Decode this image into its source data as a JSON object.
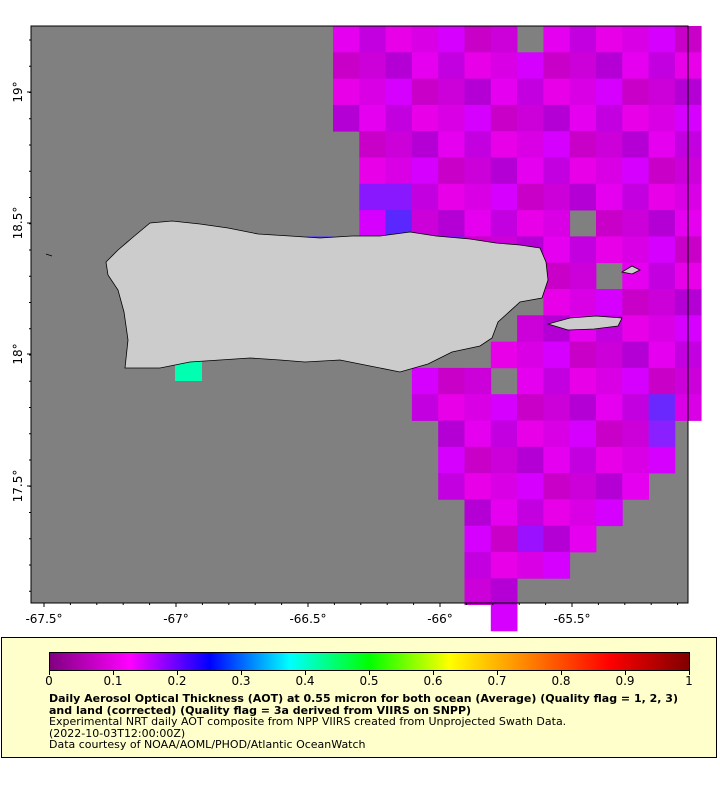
{
  "map": {
    "x_ticks": [
      "-67.5°",
      "-67°",
      "-66.5°",
      "-66°",
      "-65.5°"
    ],
    "y_ticks": [
      "19°",
      "18.5°",
      "18°",
      "17.5°"
    ],
    "land_color": "#cccccc",
    "no_data_color": "#808080",
    "coastline_color": "#000000"
  },
  "colorbar": {
    "tick_labels": [
      "0",
      "0.1",
      "0.2",
      "0.3",
      "0.4",
      "0.5",
      "0.6",
      "0.7",
      "0.8",
      "0.9",
      "1"
    ],
    "range": [
      0,
      1
    ],
    "colormap": [
      "#800080",
      "#ff00ff",
      "#0000ff",
      "#00ffff",
      "#00ff00",
      "#ffff00",
      "#ff8000",
      "#ff0000",
      "#800000"
    ]
  },
  "legend": {
    "title": "Daily Aerosol Optical Thickness (AOT) at 0.55 micron for both ocean (Average) (Quality flag = 1, 2, 3) and land (corrected) (Quality flag = 3a derived from VIIRS on SNPP)",
    "line1": "Experimental NRT daily AOT composite from NPP VIIRS created from Unprojected Swath Data.",
    "line2": "(2022-10-03T12:00:00Z)",
    "line3": "Data courtesy of NOAA/AOML/PHOD/Atlantic OceanWatch",
    "background": "#ffffcc"
  }
}
